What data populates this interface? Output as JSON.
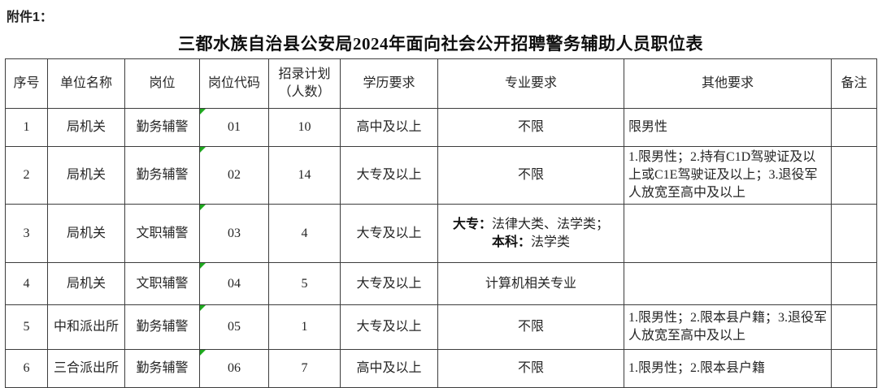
{
  "page": {
    "attachment_label": "附件1：",
    "title": "三都水族自治县公安局2024年面向社会公开招聘警务辅助人员职位表"
  },
  "colors": {
    "code_marker_green": "#1faa1f",
    "table_border": "#3d3d3d",
    "text": "#262626"
  },
  "table": {
    "headers": [
      "序号",
      "单位名称",
      "岗位",
      "岗位代码",
      "招录计划（人数）",
      "学历要求",
      "专业要求",
      "其他要求",
      "备注"
    ],
    "rows": [
      {
        "seq": "1",
        "unit": "局机关",
        "post": "勤务辅警",
        "code": "01",
        "code_marker": true,
        "plan": "10",
        "education": "高中及以上",
        "major": "不限",
        "other": "限男性",
        "note": ""
      },
      {
        "seq": "2",
        "unit": "局机关",
        "post": "勤务辅警",
        "code": "02",
        "code_marker": true,
        "plan": "14",
        "education": "大专及以上",
        "major": "不限",
        "other": "1.限男性；2.持有C1D驾驶证及以上或C1E驾驶证及以上；3.退役军人放宽至高中及以上",
        "note": ""
      },
      {
        "seq": "3",
        "unit": "局机关",
        "post": "文职辅警",
        "code": "03",
        "code_marker": true,
        "plan": "4",
        "education": "大专及以上",
        "major": "",
        "major_rich": [
          {
            "text": "大专：",
            "bold": true
          },
          {
            "text": "法律大类、法学类；",
            "bold": false
          },
          {
            "text": "本科：",
            "bold": true,
            "newline": true
          },
          {
            "text": "法学类",
            "bold": false
          }
        ],
        "other": "",
        "note": ""
      },
      {
        "seq": "4",
        "unit": "局机关",
        "post": "文职辅警",
        "code": "04",
        "code_marker": true,
        "plan": "5",
        "education": "大专及以上",
        "major": "计算机相关专业",
        "other": "",
        "note": ""
      },
      {
        "seq": "5",
        "unit": "中和派出所",
        "post": "勤务辅警",
        "code": "05",
        "code_marker": true,
        "plan": "1",
        "education": "大专及以上",
        "major": "不限",
        "other": "1.限男性；2.限本县户籍；3.退役军人放宽至高中及以上",
        "note": ""
      },
      {
        "seq": "6",
        "unit": "三合派出所",
        "post": "勤务辅警",
        "code": "06",
        "code_marker": true,
        "plan": "7",
        "education": "高中及以上",
        "major": "不限",
        "other": "1.限男性；2.限本县户籍",
        "note": ""
      }
    ]
  }
}
